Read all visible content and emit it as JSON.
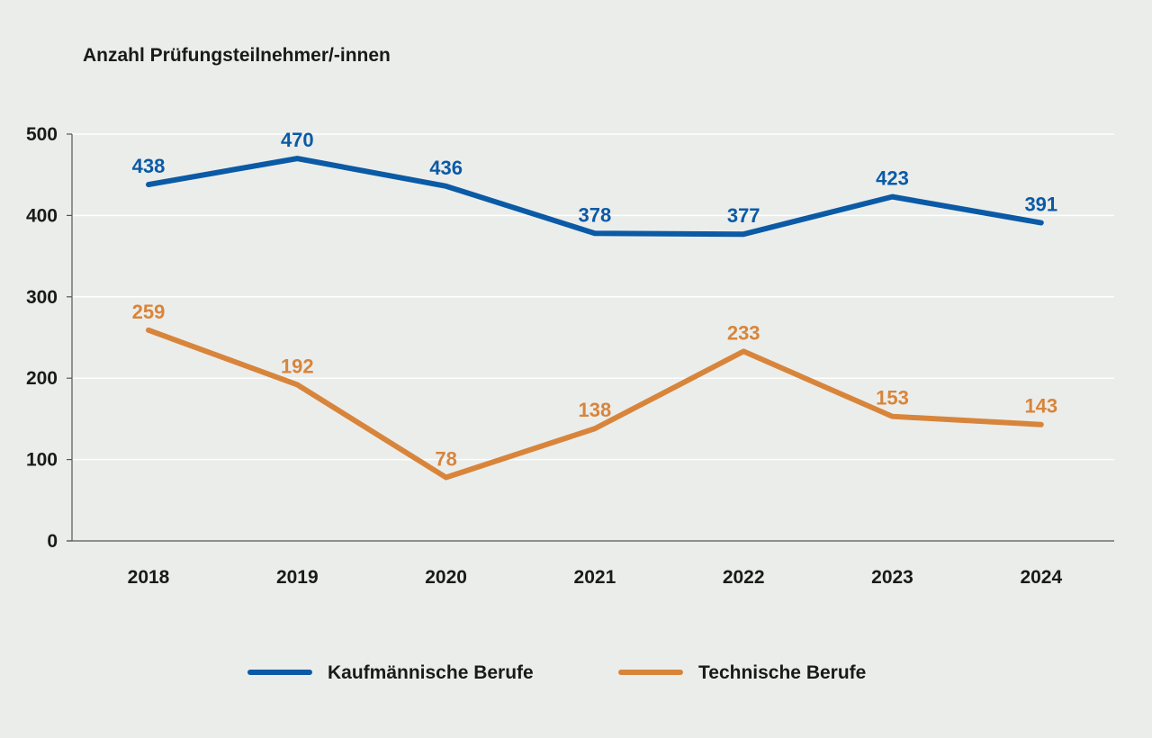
{
  "chart_data": {
    "type": "line",
    "title": "",
    "xlabel": "",
    "ylabel": "Anzahl Prüfungsteilnehmer/-innen",
    "categories": [
      "2018",
      "2019",
      "2020",
      "2021",
      "2022",
      "2023",
      "2024"
    ],
    "ylim": [
      0,
      500
    ],
    "yticks": [
      0,
      100,
      200,
      300,
      400,
      500
    ],
    "grid": true,
    "legend": "bottom",
    "series": [
      {
        "name": "Kaufmännische Berufe",
        "color": "#0b5aa6",
        "values": [
          438,
          470,
          436,
          378,
          377,
          423,
          391
        ]
      },
      {
        "name": "Technische Berufe",
        "color": "#d8853b",
        "values": [
          259,
          192,
          78,
          138,
          233,
          153,
          143
        ]
      }
    ]
  }
}
